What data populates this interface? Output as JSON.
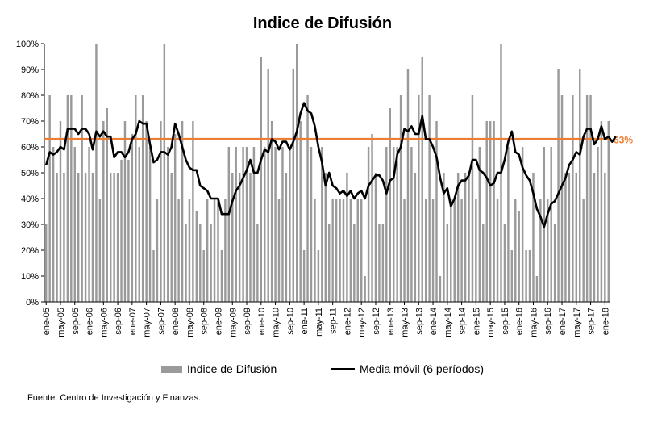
{
  "chart_data": {
    "type": "bar",
    "title": "Indice de Difusión",
    "x_tick_labels": [
      "ene-05",
      "may-05",
      "sep-05",
      "ene-06",
      "may-06",
      "sep-06",
      "ene-07",
      "may-07",
      "sep-07",
      "ene-08",
      "may-08",
      "sep-08",
      "ene-09",
      "may-09",
      "sep-09",
      "ene-10",
      "may-10",
      "sep-10",
      "ene-11",
      "may-11",
      "sep-11",
      "ene-12",
      "may-12",
      "sep-12",
      "ene-13",
      "may-13",
      "sep-13",
      "ene-14",
      "may-14",
      "sep-14",
      "ene-15",
      "may-15",
      "sep-15",
      "ene-16",
      "may-16",
      "sep-16",
      "ene-17",
      "may-17",
      "sep-17",
      "ene-18"
    ],
    "y_tick_labels": [
      "0%",
      "10%",
      "20%",
      "30%",
      "40%",
      "50%",
      "60%",
      "70%",
      "80%",
      "90%",
      "100%"
    ],
    "ylim": [
      0,
      100
    ],
    "reference_line": {
      "value": 63,
      "label": "63%",
      "color": "#ED7D31"
    },
    "series": [
      {
        "name": "Indice de Difusión",
        "type": "bar",
        "color": "#9a9a9a",
        "values": [
          30,
          80,
          60,
          50,
          70,
          50,
          80,
          80,
          60,
          50,
          80,
          50,
          60,
          50,
          100,
          40,
          70,
          75,
          50,
          50,
          50,
          55,
          70,
          55,
          65,
          80,
          60,
          80,
          70,
          60,
          20,
          40,
          70,
          100,
          60,
          50,
          65,
          40,
          70,
          30,
          40,
          70,
          35,
          30,
          20,
          40,
          30,
          40,
          40,
          20,
          40,
          60,
          50,
          60,
          50,
          60,
          60,
          50,
          60,
          30,
          95,
          60,
          90,
          70,
          60,
          40,
          60,
          50,
          60,
          90,
          100,
          70,
          20,
          80,
          60,
          40,
          20,
          60,
          50,
          30,
          40,
          40,
          40,
          40,
          50,
          40,
          30,
          40,
          40,
          10,
          60,
          65,
          50,
          30,
          30,
          60,
          75,
          60,
          60,
          80,
          40,
          90,
          60,
          50,
          80,
          95,
          40,
          80,
          40,
          70,
          10,
          50,
          30,
          40,
          40,
          50,
          40,
          50,
          50,
          80,
          40,
          60,
          30,
          70,
          70,
          70,
          40,
          100,
          30,
          60,
          20,
          40,
          35,
          60,
          20,
          20,
          50,
          10,
          40,
          60,
          40,
          60,
          30,
          90,
          80,
          50,
          50,
          80,
          50,
          90,
          40,
          80,
          80,
          50,
          60,
          70,
          50,
          70
        ]
      },
      {
        "name": "Media móvil (6 períodos)",
        "type": "line",
        "color": "#000000",
        "values": [
          53,
          58,
          57,
          58,
          60,
          59,
          67,
          67,
          67,
          65,
          67,
          67,
          65,
          59,
          66,
          64,
          66,
          64,
          64,
          56,
          58,
          58,
          56,
          58,
          63,
          65,
          70,
          69,
          69,
          61,
          54,
          55,
          58,
          58,
          57,
          60,
          69,
          65,
          60,
          55,
          52,
          51,
          51,
          45,
          44,
          43,
          40,
          40,
          40,
          34,
          34,
          34,
          39,
          43,
          45,
          48,
          51,
          55,
          50,
          50,
          55,
          59,
          58,
          63,
          62,
          59,
          62,
          62,
          59,
          62,
          66,
          73,
          77,
          74,
          73,
          68,
          60,
          54,
          45,
          50,
          45,
          44,
          42,
          43,
          41,
          43,
          40,
          42,
          43,
          40,
          45,
          47,
          49,
          49,
          47,
          42,
          47,
          48,
          57,
          60,
          67,
          66,
          68,
          65,
          65,
          72,
          63,
          63,
          60,
          56,
          48,
          42,
          44,
          37,
          40,
          45,
          47,
          47,
          49,
          55,
          55,
          51,
          50,
          48,
          45,
          46,
          50,
          50,
          55,
          62,
          66,
          58,
          57,
          52,
          49,
          47,
          42,
          36,
          33,
          29,
          34,
          38,
          39,
          42,
          45,
          48,
          53,
          55,
          58,
          57,
          64,
          67,
          67,
          61,
          63,
          68,
          63,
          64,
          62,
          64
        ]
      }
    ]
  },
  "legend": {
    "bars_label": "Indice de Difusión",
    "line_label": "Media móvil (6 períodos)"
  },
  "source_note": "Fuente: Centro de Investigación y Finanzas."
}
